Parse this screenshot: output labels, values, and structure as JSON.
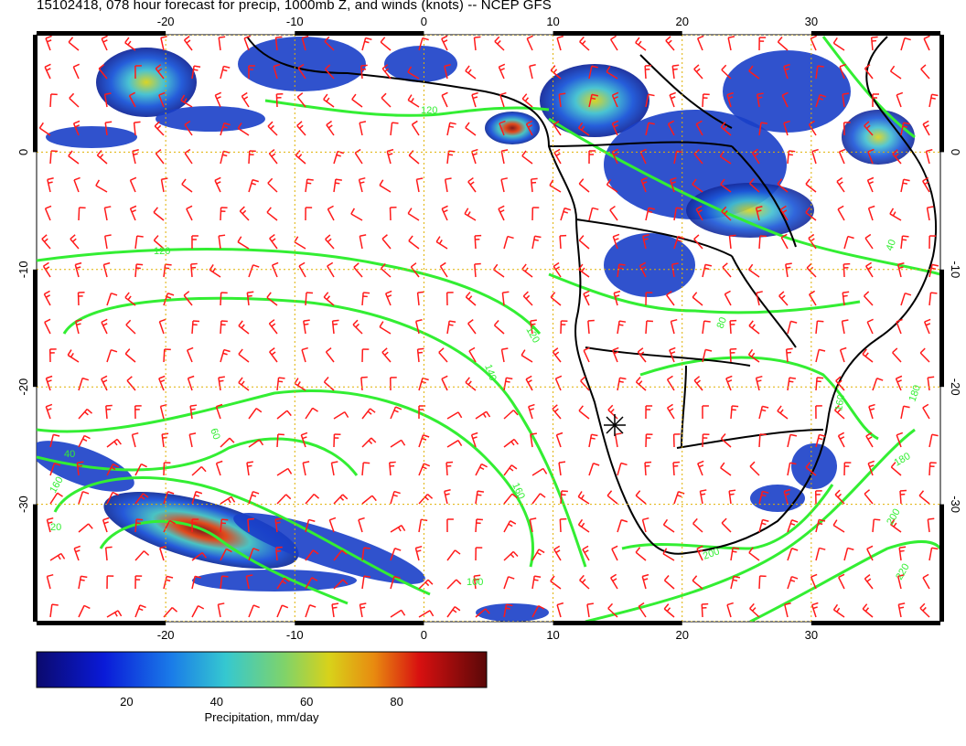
{
  "title": "15102418, 078 hour forecast for precip, 1000mb Z, and winds (knots) -- NCEP GFS",
  "map": {
    "lon_ticks": [
      "-20",
      "-10",
      "0",
      "10",
      "20",
      "30"
    ],
    "lat_ticks": [
      "0",
      "-10",
      "-20",
      "-30"
    ],
    "lon_values": [
      -20,
      -10,
      0,
      10,
      20,
      30
    ],
    "lat_values": [
      0,
      -10,
      -20,
      -30
    ],
    "lon_range": [
      -30,
      40
    ],
    "lat_range": [
      -40,
      10
    ],
    "colors": {
      "barb": "#ff1a1a",
      "contour": "#33ee33",
      "coast": "#000000",
      "grid": "#e0b000"
    }
  },
  "contour_labels": [
    "120",
    "120",
    "120",
    "140",
    "160",
    "160",
    "160",
    "180",
    "180",
    "200",
    "200",
    "220",
    "100",
    "80",
    "60",
    "40",
    "20",
    "40"
  ],
  "colorbar": {
    "label": "Precipitation, mm/day",
    "ticks": [
      "20",
      "40",
      "60",
      "80"
    ],
    "tick_values": [
      20,
      40,
      60,
      80
    ],
    "range": [
      0,
      100
    ]
  }
}
